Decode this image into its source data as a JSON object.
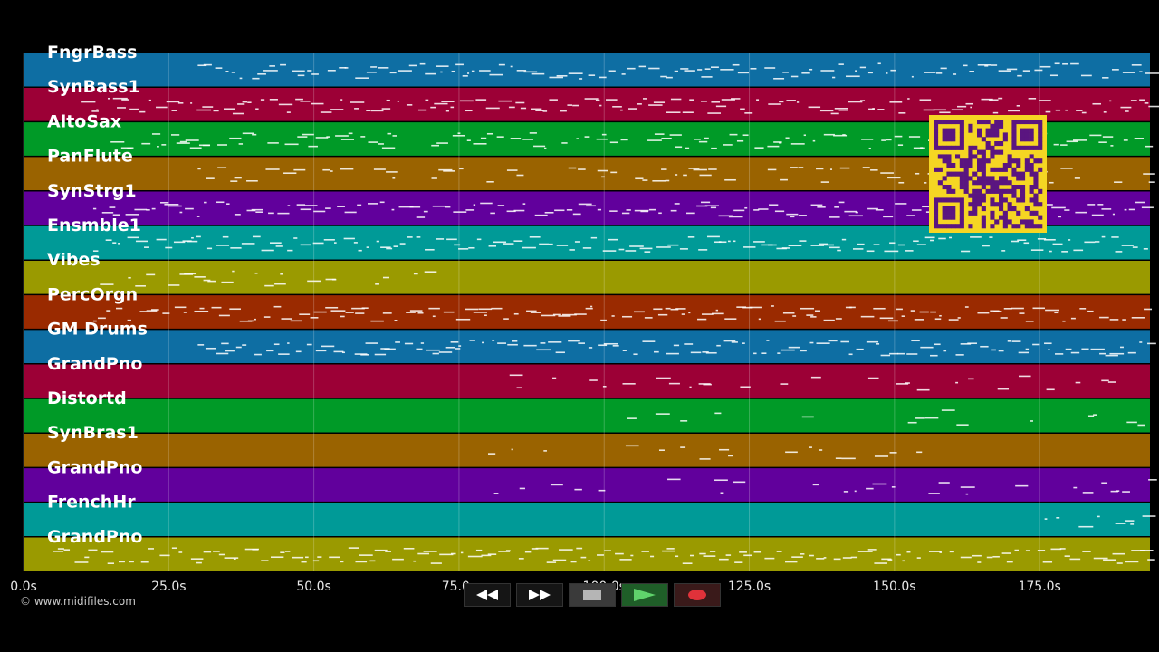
{
  "tracks": [
    {
      "label": "FngrBass",
      "color": "#0e6ea3"
    },
    {
      "label": "SynBass1",
      "color": "#9c0036"
    },
    {
      "label": "AltoSax",
      "color": "#009a27"
    },
    {
      "label": "PanFlute",
      "color": "#9a6300"
    },
    {
      "label": "SynStrg1",
      "color": "#61009c"
    },
    {
      "label": "Ensmble1",
      "color": "#009a97"
    },
    {
      "label": "Vibes",
      "color": "#9a9a00"
    },
    {
      "label": "PercOrgn",
      "color": "#9a2a00"
    },
    {
      "label": "GM Drums",
      "color": "#0e6ea3"
    },
    {
      "label": "GrandPno",
      "color": "#9c0036"
    },
    {
      "label": "Distortd",
      "color": "#009a27"
    },
    {
      "label": "SynBras1",
      "color": "#9a6300"
    },
    {
      "label": "GrandPno",
      "color": "#61009c"
    },
    {
      "label": "FrenchHr",
      "color": "#009a97"
    },
    {
      "label": "GrandPno",
      "color": "#9a9a00"
    }
  ],
  "time_axis": {
    "min": 0,
    "max": 194,
    "ticks": [
      "0.0s",
      "25.0s",
      "50.0s",
      "75.0s",
      "100.0s",
      "125.0s",
      "150.0s",
      "175.0s"
    ],
    "tick_values": [
      0,
      25,
      50,
      75,
      100,
      125,
      150,
      175
    ]
  },
  "copyright": "© www.midifiles.com",
  "transport": {
    "buttons": [
      {
        "name": "rewind-button",
        "icon": "rewind-icon"
      },
      {
        "name": "fast-forward-button",
        "icon": "fast-forward-icon"
      },
      {
        "name": "stop-button",
        "icon": "stop-icon"
      },
      {
        "name": "play-button",
        "icon": "play-icon"
      },
      {
        "name": "record-button",
        "icon": "record-icon"
      }
    ]
  },
  "qr_code": {
    "icon": "qr-code-icon",
    "color": "#f5d623"
  }
}
